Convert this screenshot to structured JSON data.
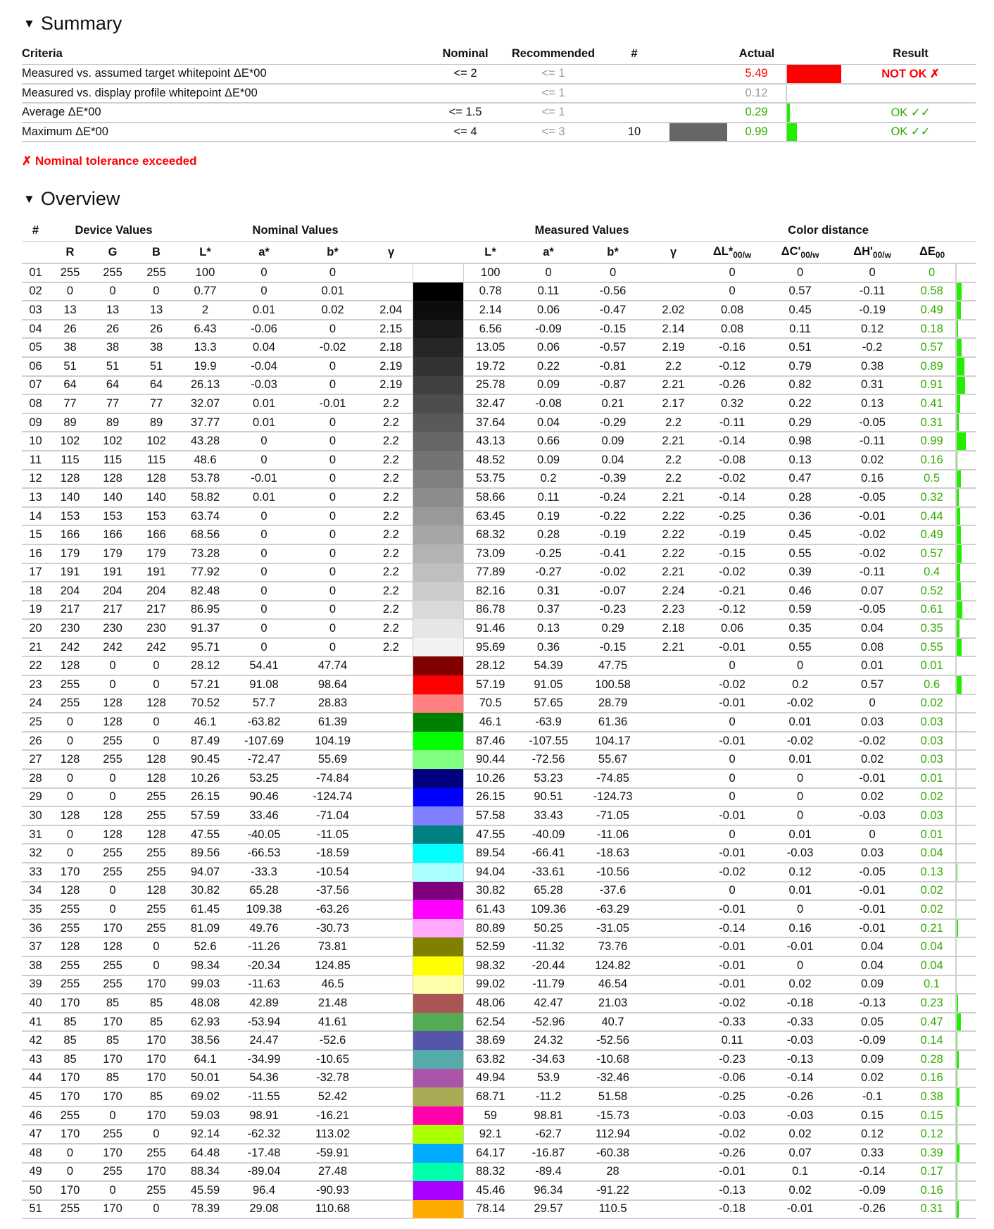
{
  "summary": {
    "title": "Summary",
    "headers": {
      "criteria": "Criteria",
      "nominal": "Nominal",
      "recommended": "Recommended",
      "count": "#",
      "actual": "Actual",
      "result": "Result"
    },
    "rows": [
      {
        "criteria": "Measured vs. assumed target whitepoint ΔE*00",
        "nominal": "<= 2",
        "recommended": "<= 1",
        "count": "",
        "actual": "5.49",
        "actual_color": "#ff0000",
        "bar_color": "#ff0000",
        "bar_value": 5.49,
        "result": "NOT OK ✗",
        "result_color": "#ff0000"
      },
      {
        "criteria": "Measured vs. display profile whitepoint ΔE*00",
        "nominal": "",
        "recommended": "<= 1",
        "count": "",
        "actual": "0.12",
        "actual_color": "#999999",
        "bar_color": "",
        "bar_value": 0,
        "result": "",
        "result_color": ""
      },
      {
        "criteria": "Average ΔE*00",
        "nominal": "<= 1.5",
        "recommended": "<= 1",
        "count": "",
        "actual": "0.29",
        "actual_color": "#33aa00",
        "bar_color": "#22ee00",
        "bar_value": 0.29,
        "result": "OK ✓✓",
        "result_color": "#33aa00"
      },
      {
        "criteria": "Maximum ΔE*00",
        "nominal": "<= 4",
        "recommended": "<= 3",
        "count": "10",
        "count_swatch": "#666666",
        "actual": "0.99",
        "actual_color": "#33aa00",
        "bar_color": "#22ee00",
        "bar_value": 0.99,
        "result": "OK ✓✓",
        "result_color": "#33aa00"
      }
    ],
    "warning": "✗ Nominal tolerance exceeded"
  },
  "overview": {
    "title": "Overview",
    "groups": {
      "num": "#",
      "device": "Device Values",
      "nominal": "Nominal Values",
      "measured": "Measured Values",
      "distance": "Color distance"
    },
    "sub_headers": [
      {
        "t": "R"
      },
      {
        "t": "G"
      },
      {
        "t": "B"
      },
      {
        "t": "L*"
      },
      {
        "t": "a*"
      },
      {
        "t": "b*"
      },
      {
        "t": "γ"
      },
      {
        "t": "L*"
      },
      {
        "t": "a*"
      },
      {
        "t": "b*"
      },
      {
        "t": "γ"
      },
      {
        "t": "ΔL*",
        "s": "00/w"
      },
      {
        "t": "ΔC'",
        "s": "00/w"
      },
      {
        "t": "ΔH'",
        "s": "00/w"
      },
      {
        "t": "ΔE",
        "s": "00"
      }
    ],
    "bar_color": "#22ee00",
    "de_color": "#33aa00",
    "rows": [
      [
        "01",
        "255",
        "255",
        "255",
        "100",
        "0",
        "0",
        "",
        "100",
        "0",
        "0",
        "",
        "0",
        "0",
        "0",
        "0"
      ],
      [
        "02",
        "0",
        "0",
        "0",
        "0.77",
        "0",
        "0.01",
        "",
        "0.78",
        "0.11",
        "-0.56",
        "",
        "0",
        "0.57",
        "-0.11",
        "0.58"
      ],
      [
        "03",
        "13",
        "13",
        "13",
        "2",
        "0.01",
        "0.02",
        "2.04",
        "2.14",
        "0.06",
        "-0.47",
        "2.02",
        "0.08",
        "0.45",
        "-0.19",
        "0.49"
      ],
      [
        "04",
        "26",
        "26",
        "26",
        "6.43",
        "-0.06",
        "0",
        "2.15",
        "6.56",
        "-0.09",
        "-0.15",
        "2.14",
        "0.08",
        "0.11",
        "0.12",
        "0.18"
      ],
      [
        "05",
        "38",
        "38",
        "38",
        "13.3",
        "0.04",
        "-0.02",
        "2.18",
        "13.05",
        "0.06",
        "-0.57",
        "2.19",
        "-0.16",
        "0.51",
        "-0.2",
        "0.57"
      ],
      [
        "06",
        "51",
        "51",
        "51",
        "19.9",
        "-0.04",
        "0",
        "2.19",
        "19.72",
        "0.22",
        "-0.81",
        "2.2",
        "-0.12",
        "0.79",
        "0.38",
        "0.89"
      ],
      [
        "07",
        "64",
        "64",
        "64",
        "26.13",
        "-0.03",
        "0",
        "2.19",
        "25.78",
        "0.09",
        "-0.87",
        "2.21",
        "-0.26",
        "0.82",
        "0.31",
        "0.91"
      ],
      [
        "08",
        "77",
        "77",
        "77",
        "32.07",
        "0.01",
        "-0.01",
        "2.2",
        "32.47",
        "-0.08",
        "0.21",
        "2.17",
        "0.32",
        "0.22",
        "0.13",
        "0.41"
      ],
      [
        "09",
        "89",
        "89",
        "89",
        "37.77",
        "0.01",
        "0",
        "2.2",
        "37.64",
        "0.04",
        "-0.29",
        "2.2",
        "-0.11",
        "0.29",
        "-0.05",
        "0.31"
      ],
      [
        "10",
        "102",
        "102",
        "102",
        "43.28",
        "0",
        "0",
        "2.2",
        "43.13",
        "0.66",
        "0.09",
        "2.21",
        "-0.14",
        "0.98",
        "-0.11",
        "0.99"
      ],
      [
        "11",
        "115",
        "115",
        "115",
        "48.6",
        "0",
        "0",
        "2.2",
        "48.52",
        "0.09",
        "0.04",
        "2.2",
        "-0.08",
        "0.13",
        "0.02",
        "0.16"
      ],
      [
        "12",
        "128",
        "128",
        "128",
        "53.78",
        "-0.01",
        "0",
        "2.2",
        "53.75",
        "0.2",
        "-0.39",
        "2.2",
        "-0.02",
        "0.47",
        "0.16",
        "0.5"
      ],
      [
        "13",
        "140",
        "140",
        "140",
        "58.82",
        "0.01",
        "0",
        "2.2",
        "58.66",
        "0.11",
        "-0.24",
        "2.21",
        "-0.14",
        "0.28",
        "-0.05",
        "0.32"
      ],
      [
        "14",
        "153",
        "153",
        "153",
        "63.74",
        "0",
        "0",
        "2.2",
        "63.45",
        "0.19",
        "-0.22",
        "2.22",
        "-0.25",
        "0.36",
        "-0.01",
        "0.44"
      ],
      [
        "15",
        "166",
        "166",
        "166",
        "68.56",
        "0",
        "0",
        "2.2",
        "68.32",
        "0.28",
        "-0.19",
        "2.22",
        "-0.19",
        "0.45",
        "-0.02",
        "0.49"
      ],
      [
        "16",
        "179",
        "179",
        "179",
        "73.28",
        "0",
        "0",
        "2.2",
        "73.09",
        "-0.25",
        "-0.41",
        "2.22",
        "-0.15",
        "0.55",
        "-0.02",
        "0.57"
      ],
      [
        "17",
        "191",
        "191",
        "191",
        "77.92",
        "0",
        "0",
        "2.2",
        "77.89",
        "-0.27",
        "-0.02",
        "2.21",
        "-0.02",
        "0.39",
        "-0.11",
        "0.4"
      ],
      [
        "18",
        "204",
        "204",
        "204",
        "82.48",
        "0",
        "0",
        "2.2",
        "82.16",
        "0.31",
        "-0.07",
        "2.24",
        "-0.21",
        "0.46",
        "0.07",
        "0.52"
      ],
      [
        "19",
        "217",
        "217",
        "217",
        "86.95",
        "0",
        "0",
        "2.2",
        "86.78",
        "0.37",
        "-0.23",
        "2.23",
        "-0.12",
        "0.59",
        "-0.05",
        "0.61"
      ],
      [
        "20",
        "230",
        "230",
        "230",
        "91.37",
        "0",
        "0",
        "2.2",
        "91.46",
        "0.13",
        "0.29",
        "2.18",
        "0.06",
        "0.35",
        "0.04",
        "0.35"
      ],
      [
        "21",
        "242",
        "242",
        "242",
        "95.71",
        "0",
        "0",
        "2.2",
        "95.69",
        "0.36",
        "-0.15",
        "2.21",
        "-0.01",
        "0.55",
        "0.08",
        "0.55"
      ],
      [
        "22",
        "128",
        "0",
        "0",
        "28.12",
        "54.41",
        "47.74",
        "",
        "28.12",
        "54.39",
        "47.75",
        "",
        "0",
        "0",
        "0.01",
        "0.01"
      ],
      [
        "23",
        "255",
        "0",
        "0",
        "57.21",
        "91.08",
        "98.64",
        "",
        "57.19",
        "91.05",
        "100.58",
        "",
        "-0.02",
        "0.2",
        "0.57",
        "0.6"
      ],
      [
        "24",
        "255",
        "128",
        "128",
        "70.52",
        "57.7",
        "28.83",
        "",
        "70.5",
        "57.65",
        "28.79",
        "",
        "-0.01",
        "-0.02",
        "0",
        "0.02"
      ],
      [
        "25",
        "0",
        "128",
        "0",
        "46.1",
        "-63.82",
        "61.39",
        "",
        "46.1",
        "-63.9",
        "61.36",
        "",
        "0",
        "0.01",
        "0.03",
        "0.03"
      ],
      [
        "26",
        "0",
        "255",
        "0",
        "87.49",
        "-107.69",
        "104.19",
        "",
        "87.46",
        "-107.55",
        "104.17",
        "",
        "-0.01",
        "-0.02",
        "-0.02",
        "0.03"
      ],
      [
        "27",
        "128",
        "255",
        "128",
        "90.45",
        "-72.47",
        "55.69",
        "",
        "90.44",
        "-72.56",
        "55.67",
        "",
        "0",
        "0.01",
        "0.02",
        "0.03"
      ],
      [
        "28",
        "0",
        "0",
        "128",
        "10.26",
        "53.25",
        "-74.84",
        "",
        "10.26",
        "53.23",
        "-74.85",
        "",
        "0",
        "0",
        "-0.01",
        "0.01"
      ],
      [
        "29",
        "0",
        "0",
        "255",
        "26.15",
        "90.46",
        "-124.74",
        "",
        "26.15",
        "90.51",
        "-124.73",
        "",
        "0",
        "0",
        "0.02",
        "0.02"
      ],
      [
        "30",
        "128",
        "128",
        "255",
        "57.59",
        "33.46",
        "-71.04",
        "",
        "57.58",
        "33.43",
        "-71.05",
        "",
        "-0.01",
        "0",
        "-0.03",
        "0.03"
      ],
      [
        "31",
        "0",
        "128",
        "128",
        "47.55",
        "-40.05",
        "-11.05",
        "",
        "47.55",
        "-40.09",
        "-11.06",
        "",
        "0",
        "0.01",
        "0",
        "0.01"
      ],
      [
        "32",
        "0",
        "255",
        "255",
        "89.56",
        "-66.53",
        "-18.59",
        "",
        "89.54",
        "-66.41",
        "-18.63",
        "",
        "-0.01",
        "-0.03",
        "0.03",
        "0.04"
      ],
      [
        "33",
        "170",
        "255",
        "255",
        "94.07",
        "-33.3",
        "-10.54",
        "",
        "94.04",
        "-33.61",
        "-10.56",
        "",
        "-0.02",
        "0.12",
        "-0.05",
        "0.13"
      ],
      [
        "34",
        "128",
        "0",
        "128",
        "30.82",
        "65.28",
        "-37.56",
        "",
        "30.82",
        "65.28",
        "-37.6",
        "",
        "0",
        "0.01",
        "-0.01",
        "0.02"
      ],
      [
        "35",
        "255",
        "0",
        "255",
        "61.45",
        "109.38",
        "-63.26",
        "",
        "61.43",
        "109.36",
        "-63.29",
        "",
        "-0.01",
        "0",
        "-0.01",
        "0.02"
      ],
      [
        "36",
        "255",
        "170",
        "255",
        "81.09",
        "49.76",
        "-30.73",
        "",
        "80.89",
        "50.25",
        "-31.05",
        "",
        "-0.14",
        "0.16",
        "-0.01",
        "0.21"
      ],
      [
        "37",
        "128",
        "128",
        "0",
        "52.6",
        "-11.26",
        "73.81",
        "",
        "52.59",
        "-11.32",
        "73.76",
        "",
        "-0.01",
        "-0.01",
        "0.04",
        "0.04"
      ],
      [
        "38",
        "255",
        "255",
        "0",
        "98.34",
        "-20.34",
        "124.85",
        "",
        "98.32",
        "-20.44",
        "124.82",
        "",
        "-0.01",
        "0",
        "0.04",
        "0.04"
      ],
      [
        "39",
        "255",
        "255",
        "170",
        "99.03",
        "-11.63",
        "46.5",
        "",
        "99.02",
        "-11.79",
        "46.54",
        "",
        "-0.01",
        "0.02",
        "0.09",
        "0.1"
      ],
      [
        "40",
        "170",
        "85",
        "85",
        "48.08",
        "42.89",
        "21.48",
        "",
        "48.06",
        "42.47",
        "21.03",
        "",
        "-0.02",
        "-0.18",
        "-0.13",
        "0.23"
      ],
      [
        "41",
        "85",
        "170",
        "85",
        "62.93",
        "-53.94",
        "41.61",
        "",
        "62.54",
        "-52.96",
        "40.7",
        "",
        "-0.33",
        "-0.33",
        "0.05",
        "0.47"
      ],
      [
        "42",
        "85",
        "85",
        "170",
        "38.56",
        "24.47",
        "-52.6",
        "",
        "38.69",
        "24.32",
        "-52.56",
        "",
        "0.11",
        "-0.03",
        "-0.09",
        "0.14"
      ],
      [
        "43",
        "85",
        "170",
        "170",
        "64.1",
        "-34.99",
        "-10.65",
        "",
        "63.82",
        "-34.63",
        "-10.68",
        "",
        "-0.23",
        "-0.13",
        "0.09",
        "0.28"
      ],
      [
        "44",
        "170",
        "85",
        "170",
        "50.01",
        "54.36",
        "-32.78",
        "",
        "49.94",
        "53.9",
        "-32.46",
        "",
        "-0.06",
        "-0.14",
        "0.02",
        "0.16"
      ],
      [
        "45",
        "170",
        "170",
        "85",
        "69.02",
        "-11.55",
        "52.42",
        "",
        "68.71",
        "-11.2",
        "51.58",
        "",
        "-0.25",
        "-0.26",
        "-0.1",
        "0.38"
      ],
      [
        "46",
        "255",
        "0",
        "170",
        "59.03",
        "98.91",
        "-16.21",
        "",
        "59",
        "98.81",
        "-15.73",
        "",
        "-0.03",
        "-0.03",
        "0.15",
        "0.15"
      ],
      [
        "47",
        "170",
        "255",
        "0",
        "92.14",
        "-62.32",
        "113.02",
        "",
        "92.1",
        "-62.7",
        "112.94",
        "",
        "-0.02",
        "0.02",
        "0.12",
        "0.12"
      ],
      [
        "48",
        "0",
        "170",
        "255",
        "64.48",
        "-17.48",
        "-59.91",
        "",
        "64.17",
        "-16.87",
        "-60.38",
        "",
        "-0.26",
        "0.07",
        "0.33",
        "0.39"
      ],
      [
        "49",
        "0",
        "255",
        "170",
        "88.34",
        "-89.04",
        "27.48",
        "",
        "88.32",
        "-89.4",
        "28",
        "",
        "-0.01",
        "0.1",
        "-0.14",
        "0.17"
      ],
      [
        "50",
        "170",
        "0",
        "255",
        "45.59",
        "96.4",
        "-90.93",
        "",
        "45.46",
        "96.34",
        "-91.22",
        "",
        "-0.13",
        "0.02",
        "-0.09",
        "0.16"
      ],
      [
        "51",
        "255",
        "170",
        "0",
        "78.39",
        "29.08",
        "110.68",
        "",
        "78.14",
        "29.57",
        "110.5",
        "",
        "-0.18",
        "-0.01",
        "-0.26",
        "0.31"
      ]
    ]
  }
}
